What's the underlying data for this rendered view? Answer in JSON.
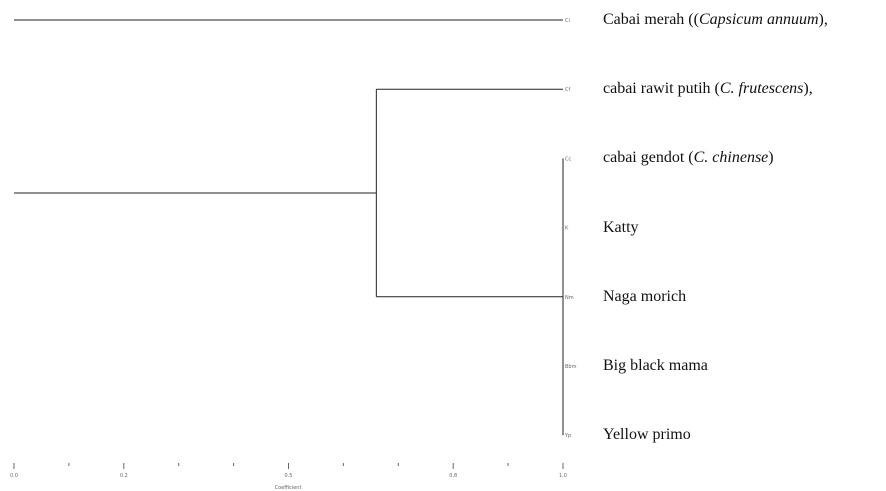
{
  "leaves": [
    {
      "name_pre": "Cabai merah ((",
      "name_italic": "Capsicum annuum",
      "name_post": "),",
      "code": "Ci"
    },
    {
      "name_pre": "cabai rawit putih (",
      "name_italic": "C. frutescens",
      "name_post": "),",
      "code": "Cf"
    },
    {
      "name_pre": "cabai gendot (",
      "name_italic": "C. chinense",
      "name_post": ")",
      "code": "Cc"
    },
    {
      "name_pre": "Katty",
      "name_italic": "",
      "name_post": "",
      "code": "K"
    },
    {
      "name_pre": "Naga morich",
      "name_italic": "",
      "name_post": "",
      "code": "Nm"
    },
    {
      "name_pre": "Big black mama",
      "name_italic": "",
      "name_post": "",
      "code": "Bbm"
    },
    {
      "name_pre": "Yellow primo",
      "name_italic": "",
      "name_post": "",
      "code": "Yp"
    }
  ],
  "axis": {
    "min": 0.0,
    "max": 1.0,
    "tick_labels": [
      "0.0",
      "0.2",
      "0.5",
      "0.8",
      "1.0"
    ],
    "minor_ticks": [
      0.1,
      0.3,
      0.4,
      0.6,
      0.7,
      0.9
    ],
    "title": "Coefficient"
  },
  "tree": {
    "root_value": 0.0,
    "inner_value": 0.66,
    "cluster_value": 1.0
  },
  "colors": {
    "line": "#222222",
    "text": "#111111",
    "axis": "#666666"
  }
}
